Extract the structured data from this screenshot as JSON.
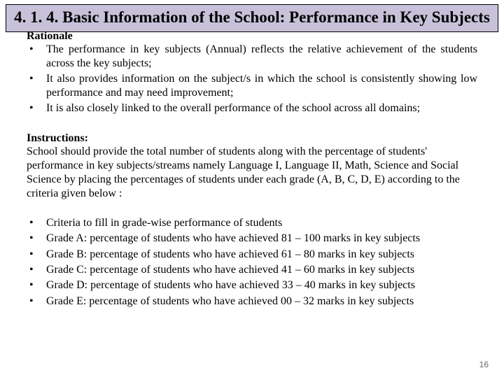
{
  "title": "4. 1. 4. Basic Information of the School: Performance in Key Subjects",
  "rationale": {
    "heading": "Rationale",
    "items": [
      "The performance in key subjects (Annual) reflects the relative achievement of the students across the key subjects;",
      "It also provides information on the subject/s in which the school is consistently showing low performance and may need improvement;",
      "It is also closely linked to the overall performance of the school across all domains;"
    ]
  },
  "instructions": {
    "heading": "Instructions:",
    "text": "School should provide the total number of students along with the percentage of students' performance in key subjects/streams namely Language I, Language II, Math, Science and Social Science by placing the percentages of students under each grade (A, B, C, D, E) according to the criteria given below :"
  },
  "criteria": {
    "items": [
      "Criteria to fill in grade-wise performance of students",
      "Grade A: percentage of students who have achieved 81 – 100 marks in key subjects",
      "Grade B: percentage of students who have achieved 61 – 80 marks in key subjects",
      "Grade C: percentage of students who have achieved 41 – 60 marks in key subjects",
      "Grade D: percentage of students who have achieved 33 – 40 marks in key subjects",
      "Grade E: percentage of students who have achieved 00 – 32 marks in key subjects"
    ]
  },
  "page_number": "16",
  "colors": {
    "title_bg": "#c7c1d9",
    "text": "#000000",
    "page_num": "#6a6a6a"
  }
}
